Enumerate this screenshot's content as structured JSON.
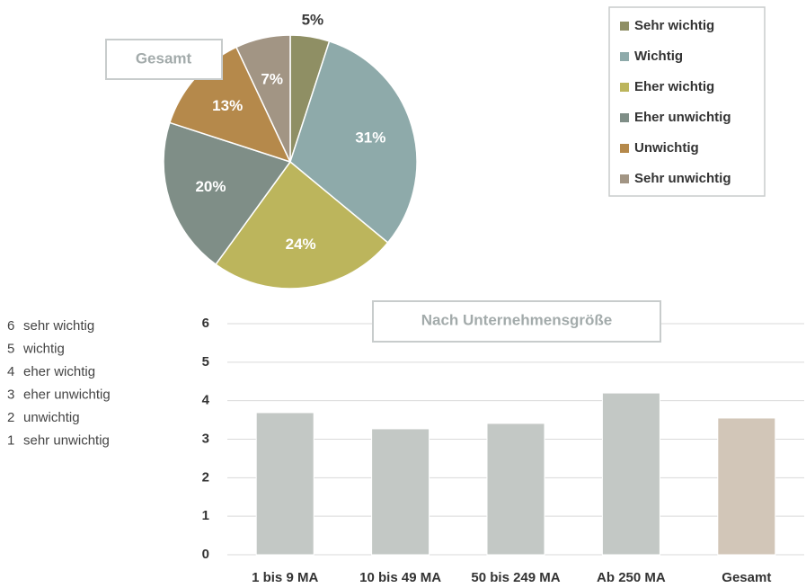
{
  "chart_data": [
    {
      "type": "pie",
      "title": "Gesamt",
      "categories": [
        "Sehr wichtig",
        "Wichtig",
        "Eher wichtig",
        "Eher unwichtig",
        "Unwichtig",
        "Sehr unwichtig"
      ],
      "values": [
        5,
        31,
        24,
        20,
        13,
        7
      ],
      "value_labels": [
        "5%",
        "31%",
        "24%",
        "20%",
        "13%",
        "7%"
      ],
      "colors": [
        "#8f8f64",
        "#8eaaaa",
        "#bcb55c",
        "#7f8e87",
        "#b5894b",
        "#a29584"
      ],
      "legend": "top-right"
    },
    {
      "type": "bar",
      "title": "Nach Unternehmensgröße",
      "categories": [
        "1 bis 9 MA",
        "10 bis 49 MA",
        "50 bis 249 MA",
        "Ab 250 MA",
        "Gesamt"
      ],
      "values": [
        3.69,
        3.27,
        3.41,
        4.2,
        3.55
      ],
      "colors": [
        "#c3c8c5",
        "#c3c8c5",
        "#c3c8c5",
        "#c3c8c5",
        "#d2c6b8"
      ],
      "ylim": [
        0,
        6
      ],
      "yticks": [
        0,
        1,
        2,
        3,
        4,
        5,
        6
      ],
      "grid": true
    }
  ],
  "scale_legend": [
    {
      "number": 6,
      "label": "sehr wichtig"
    },
    {
      "number": 5,
      "label": "wichtig"
    },
    {
      "number": 4,
      "label": "eher wichtig"
    },
    {
      "number": 3,
      "label": "eher unwichtig"
    },
    {
      "number": 2,
      "label": "unwichtig"
    },
    {
      "number": 1,
      "label": "sehr unwichtig"
    }
  ]
}
